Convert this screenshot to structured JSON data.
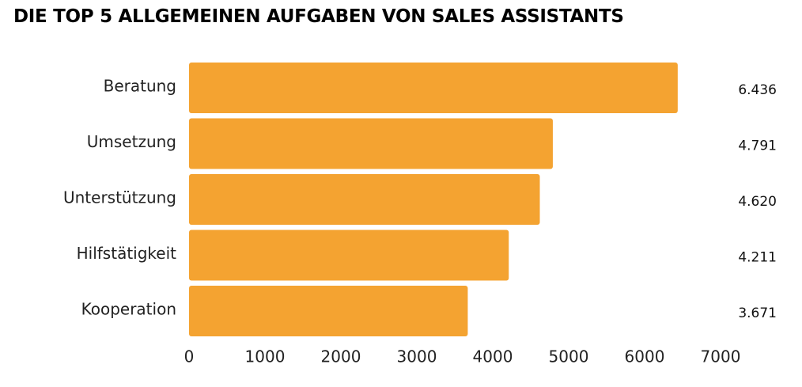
{
  "chart_data": {
    "type": "bar",
    "orientation": "horizontal",
    "title": "DIE TOP 5 ALLGEMEINEN AUFGABEN VON SALES ASSISTANTS",
    "categories": [
      "Beratung",
      "Umsetzung",
      "Unterstützung",
      "Hilfstätigkeit",
      "Kooperation"
    ],
    "values": [
      6436,
      4791,
      4620,
      4211,
      3671
    ],
    "value_labels": [
      "6.436",
      "4.791",
      "4.620",
      "4.211",
      "3.671"
    ],
    "xlim": [
      0,
      7000
    ],
    "xticks": [
      0,
      1000,
      2000,
      3000,
      4000,
      5000,
      6000,
      7000
    ],
    "xlabel": "",
    "ylabel": "",
    "grid": false,
    "legend": "none",
    "bar_color": "#F4A331"
  }
}
